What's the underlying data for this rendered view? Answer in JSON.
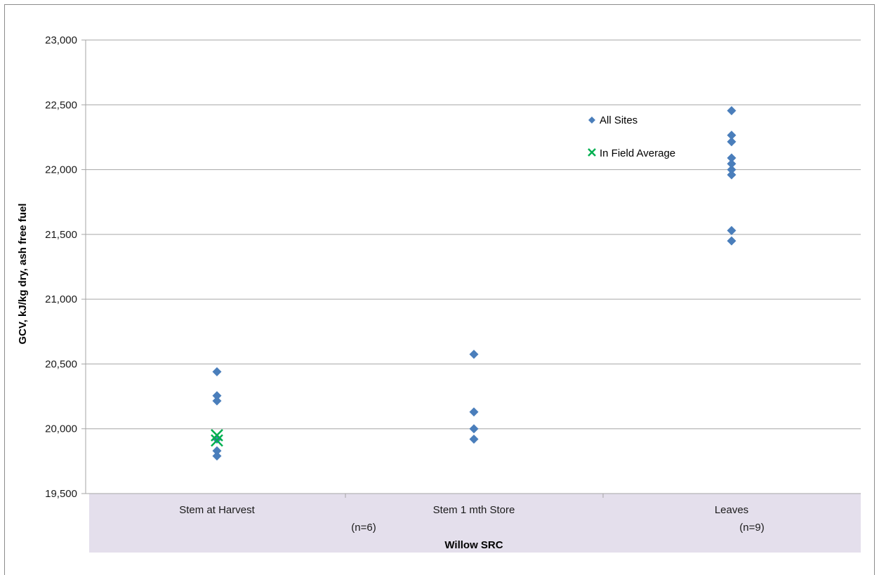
{
  "chart_data": {
    "type": "scatter",
    "title": "",
    "xlabel": "Willow SRC",
    "ylabel": "GCV, kJ/kg dry, ash free fuel",
    "ylim": [
      19500,
      23000
    ],
    "yticks": [
      19500,
      20000,
      20500,
      21000,
      21500,
      22000,
      22500,
      23000
    ],
    "ytick_labels": [
      "19,500",
      "20,000",
      "20,500",
      "21,000",
      "21,500",
      "22,000",
      "22,500",
      "23,000"
    ],
    "categories": [
      "Stem at Harvest",
      "Stem 1 mth Store",
      "Leaves"
    ],
    "category_notes": [
      "(n=6)",
      "(n=9)"
    ],
    "grid": "horizontal",
    "legend_position": "upper-right-inside",
    "series": [
      {
        "name": "All Sites",
        "marker": "diamond",
        "color": "#4a7ebb",
        "points": [
          {
            "category": "Stem at Harvest",
            "y": 20440
          },
          {
            "category": "Stem at Harvest",
            "y": 20255
          },
          {
            "category": "Stem at Harvest",
            "y": 20215
          },
          {
            "category": "Stem at Harvest",
            "y": 19920
          },
          {
            "category": "Stem at Harvest",
            "y": 19830
          },
          {
            "category": "Stem at Harvest",
            "y": 19790
          },
          {
            "category": "Stem 1 mth Store",
            "y": 20575
          },
          {
            "category": "Stem 1 mth Store",
            "y": 20130
          },
          {
            "category": "Stem 1 mth Store",
            "y": 20000
          },
          {
            "category": "Stem 1 mth Store",
            "y": 19920
          },
          {
            "category": "Leaves",
            "y": 22455
          },
          {
            "category": "Leaves",
            "y": 22265
          },
          {
            "category": "Leaves",
            "y": 22215
          },
          {
            "category": "Leaves",
            "y": 22090
          },
          {
            "category": "Leaves",
            "y": 22045
          },
          {
            "category": "Leaves",
            "y": 22000
          },
          {
            "category": "Leaves",
            "y": 21960
          },
          {
            "category": "Leaves",
            "y": 21530
          },
          {
            "category": "Leaves",
            "y": 21450
          }
        ]
      },
      {
        "name": "In Field Average",
        "marker": "x",
        "color": "#00b050",
        "points": [
          {
            "category": "Stem at Harvest",
            "y": 19950
          },
          {
            "category": "Stem at Harvest",
            "y": 19910
          }
        ]
      }
    ]
  }
}
